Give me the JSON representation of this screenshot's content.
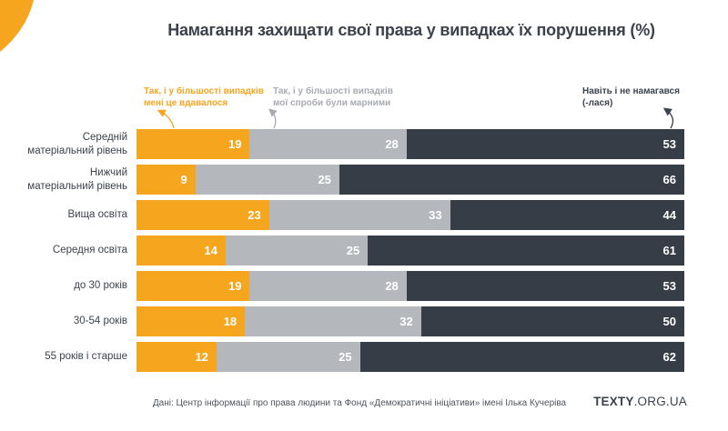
{
  "title": "Намагання захищати свої права у випадках їх порушення (%)",
  "colors": {
    "succeeded": "#F6A51F",
    "futile": "#B4B7BC",
    "not_tried": "#373D47",
    "background": "#FFFFFF",
    "title_text": "#3C424C",
    "legend_futile_text": "#A8ABB1",
    "source_text": "#4E545C"
  },
  "legend": {
    "succeeded": {
      "line1": "Так, і у більшості випадків",
      "line2": "мені це вдавалося"
    },
    "futile": {
      "line1": "Так, і у більшості випадків",
      "line2": "мої спроби були марними"
    },
    "not_tried": {
      "line1": "Навіть і не намагався",
      "line2": "(-лася)"
    }
  },
  "chart_data": {
    "type": "bar",
    "orientation": "horizontal",
    "stacked": true,
    "xlim": [
      0,
      100
    ],
    "unit": "%",
    "value_labels": "inside-right",
    "categories": [
      "Середній матеріальний рівень",
      "Нижчий матеріальний рівень",
      "Вища освіта",
      "Середня освіта",
      "до 30 років",
      "30-54 років",
      "55 років і старше"
    ],
    "category_lines": [
      [
        "Середній",
        "матеріальний рівень"
      ],
      [
        "Нижчий",
        "матеріальний рівень"
      ],
      [
        "Вища освіта"
      ],
      [
        "Середня освіта"
      ],
      [
        "до 30 років"
      ],
      [
        "30-54 років"
      ],
      [
        "55 років і старше"
      ]
    ],
    "series": [
      {
        "name": "Так, і у більшості випадків мені це вдавалося",
        "color": "#F6A51F",
        "values": [
          19,
          9,
          23,
          14,
          19,
          18,
          12
        ]
      },
      {
        "name": "Так, і у більшості випадків мої спроби були марними",
        "color": "#B4B7BC",
        "values": [
          28,
          25,
          33,
          25,
          28,
          32,
          25
        ]
      },
      {
        "name": "Навіть і не намагався (-лася)",
        "color": "#373D47",
        "values": [
          53,
          66,
          44,
          61,
          53,
          50,
          62
        ]
      }
    ]
  },
  "footer": {
    "source": "Дані: Центр інформації про права людини та Фонд «Демократичні ініціативи» імені Ілька Кучеріва",
    "logo": {
      "bold": "TEXTY",
      "rest": ".ORG.UA"
    }
  }
}
